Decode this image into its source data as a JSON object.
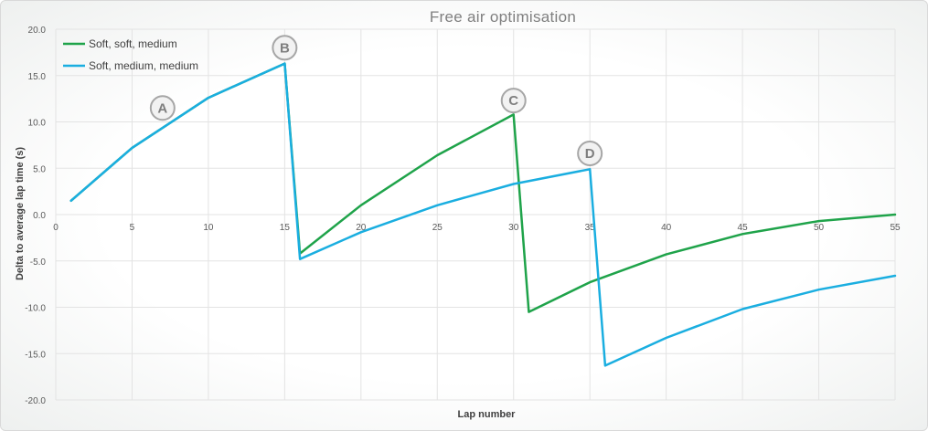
{
  "chart_data": {
    "type": "line",
    "title": "Free air optimisation",
    "xlabel": "Lap number",
    "ylabel": "Delta to average lap time (s)",
    "xlim": [
      0,
      55
    ],
    "ylim": [
      -20,
      20
    ],
    "x_ticks": [
      0,
      5,
      10,
      15,
      20,
      25,
      30,
      35,
      40,
      45,
      50,
      55
    ],
    "y_ticks": [
      20,
      15,
      10,
      5,
      0,
      -5,
      -10,
      -15,
      -20
    ],
    "x_tick_labels": [
      "0",
      "5",
      "10",
      "15",
      "20",
      "25",
      "30",
      "35",
      "40",
      "45",
      "50",
      "55"
    ],
    "y_tick_labels": [
      "20.0",
      "15.0",
      "10.0",
      "5.0",
      "0.0",
      "-5.0",
      "-10.0",
      "-15.0",
      "-20.0"
    ],
    "grid": true,
    "legend": "top-left",
    "series": [
      {
        "name": "Soft, soft, medium",
        "color": "#1fa34a",
        "x": [
          1,
          5,
          10,
          15,
          16,
          20,
          25,
          30,
          31,
          35,
          40,
          45,
          50,
          55
        ],
        "y": [
          1.5,
          7.2,
          12.6,
          16.3,
          -4.2,
          1.0,
          6.4,
          10.8,
          -10.5,
          -7.3,
          -4.3,
          -2.1,
          -0.7,
          0.0
        ]
      },
      {
        "name": "Soft, medium, medium",
        "color": "#1aaee0",
        "x": [
          1,
          5,
          10,
          15,
          16,
          20,
          25,
          30,
          35,
          36,
          40,
          45,
          50,
          55
        ],
        "y": [
          1.5,
          7.2,
          12.6,
          16.3,
          -4.8,
          -1.9,
          1.0,
          3.3,
          4.9,
          -16.3,
          -13.3,
          -10.2,
          -8.1,
          -6.6
        ]
      }
    ],
    "annotations": [
      {
        "label": "A",
        "x": 7,
        "y": 11.5
      },
      {
        "label": "B",
        "x": 15,
        "y": 18
      },
      {
        "label": "C",
        "x": 30,
        "y": 12.3
      },
      {
        "label": "D",
        "x": 35,
        "y": 6.6
      }
    ],
    "annotation_style": {
      "stroke": "#a6a6a6",
      "fill": "#f2f2f2",
      "text": "#7f7f7f"
    },
    "gridline_color": "#e3e3e3"
  }
}
